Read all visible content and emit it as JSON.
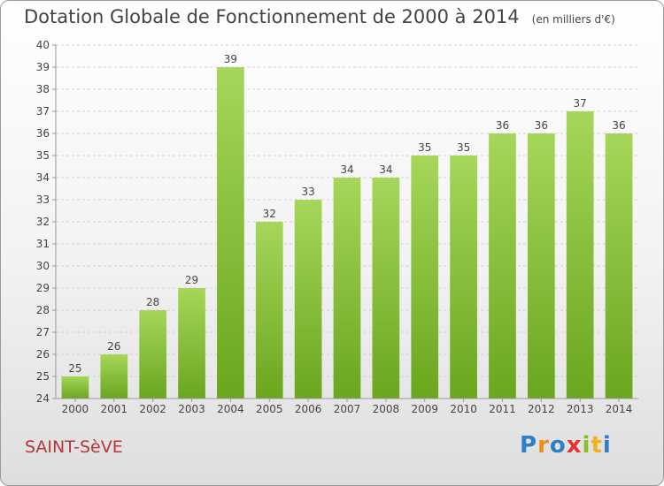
{
  "title": "Dotation Globale de Fonctionnement de 2000 à 2014",
  "unit": "(en milliers d'€)",
  "commune": "SAINT-SèVE",
  "logo": [
    "P",
    "r",
    "o",
    "x",
    "i",
    "t",
    "i"
  ],
  "colors": {
    "bar_light": "#a6d65a",
    "bar_dark": "#6aa61e",
    "grid": "#d0d0d0",
    "axis": "#999999",
    "text": "#444444",
    "commune": "#b8343c"
  },
  "chart_data": {
    "type": "bar",
    "categories": [
      "2000",
      "2001",
      "2002",
      "2003",
      "2004",
      "2005",
      "2006",
      "2007",
      "2008",
      "2009",
      "2010",
      "2011",
      "2012",
      "2013",
      "2014"
    ],
    "values": [
      25,
      26,
      28,
      29,
      39,
      32,
      33,
      34,
      34,
      35,
      35,
      36,
      36,
      37,
      36
    ],
    "value_labels": [
      "25",
      "26",
      "28",
      "29",
      "39",
      "32",
      "33",
      "34",
      "34",
      "35",
      "35",
      "36",
      "36",
      "37",
      "36"
    ],
    "yticks": [
      "24",
      "25",
      "26",
      "27",
      "28",
      "29",
      "30",
      "31",
      "32",
      "33",
      "34",
      "35",
      "36",
      "37",
      "38",
      "39",
      "40"
    ],
    "ylim": [
      24,
      40
    ],
    "grid": true,
    "legend": "none"
  }
}
